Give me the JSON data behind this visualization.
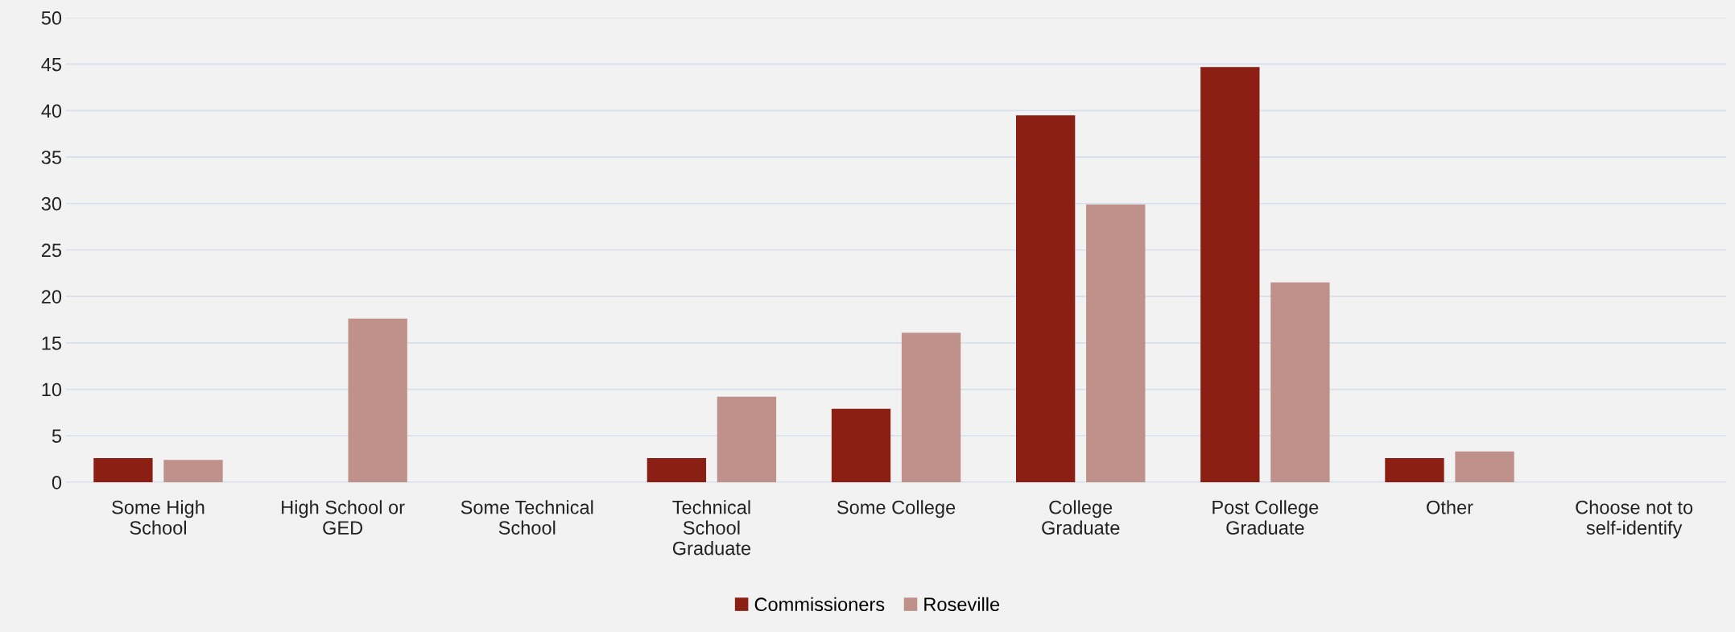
{
  "chart_data": {
    "type": "bar",
    "categories": [
      "Some High School",
      "High School or GED",
      "Some Technical School",
      "Technical School Graduate",
      "Some College",
      "College Graduate",
      "Post College Graduate",
      "Other",
      "Choose not to self-identify"
    ],
    "series": [
      {
        "name": "Commissioners",
        "color": "#8b1f14",
        "values": [
          2.6,
          0,
          0,
          2.6,
          7.9,
          39.5,
          44.7,
          2.6,
          0
        ]
      },
      {
        "name": "Roseville",
        "color": "#c0908b",
        "values": [
          2.4,
          17.6,
          0,
          9.2,
          16.1,
          29.9,
          21.5,
          3.3,
          0
        ]
      }
    ],
    "ylim": [
      0,
      50
    ],
    "yticks": [
      0,
      5,
      10,
      15,
      20,
      25,
      30,
      35,
      40,
      45,
      50
    ],
    "grid": "y",
    "legend": "bottom"
  }
}
